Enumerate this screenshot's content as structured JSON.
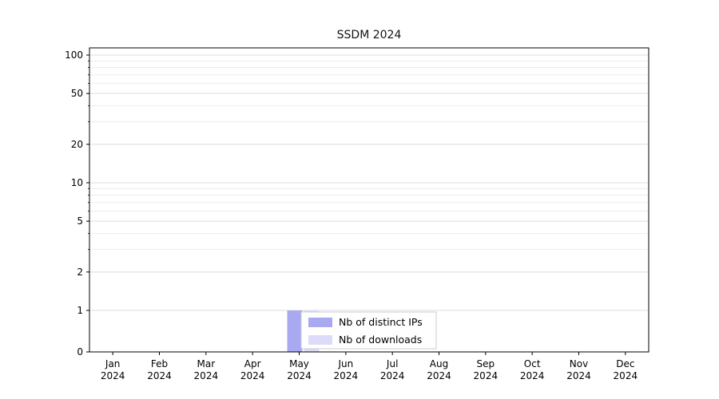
{
  "chart_data": {
    "type": "bar",
    "title": "SSDM 2024",
    "categories": [
      "Jan",
      "Feb",
      "Mar",
      "Apr",
      "May",
      "Jun",
      "Jul",
      "Aug",
      "Sep",
      "Oct",
      "Nov",
      "Dec"
    ],
    "category_year": "2024",
    "series": [
      {
        "name": "Nb of distinct IPs",
        "color": "#a9a9f2",
        "values": [
          0,
          0,
          0,
          0,
          1,
          0,
          0,
          0,
          0,
          0,
          0,
          0
        ]
      },
      {
        "name": "Nb of downloads",
        "color": "#dcdcf8",
        "values": [
          0,
          0,
          0,
          0,
          1,
          0,
          0,
          0,
          0,
          0,
          0,
          0
        ]
      }
    ],
    "yticks": [
      0,
      1,
      2,
      5,
      10,
      20,
      50,
      100
    ],
    "ylim": [
      0,
      110
    ],
    "scale": "symlog",
    "grid": true,
    "xlabel": "",
    "ylabel": "",
    "legend": {
      "position": "inside-bottom-center"
    }
  },
  "colors": {
    "axis": "#000000",
    "grid_minor": "#ededed",
    "grid_major": "#dedede",
    "legend_border": "#cccccc",
    "legend_bg": "#ffffff",
    "text": "#000000"
  }
}
